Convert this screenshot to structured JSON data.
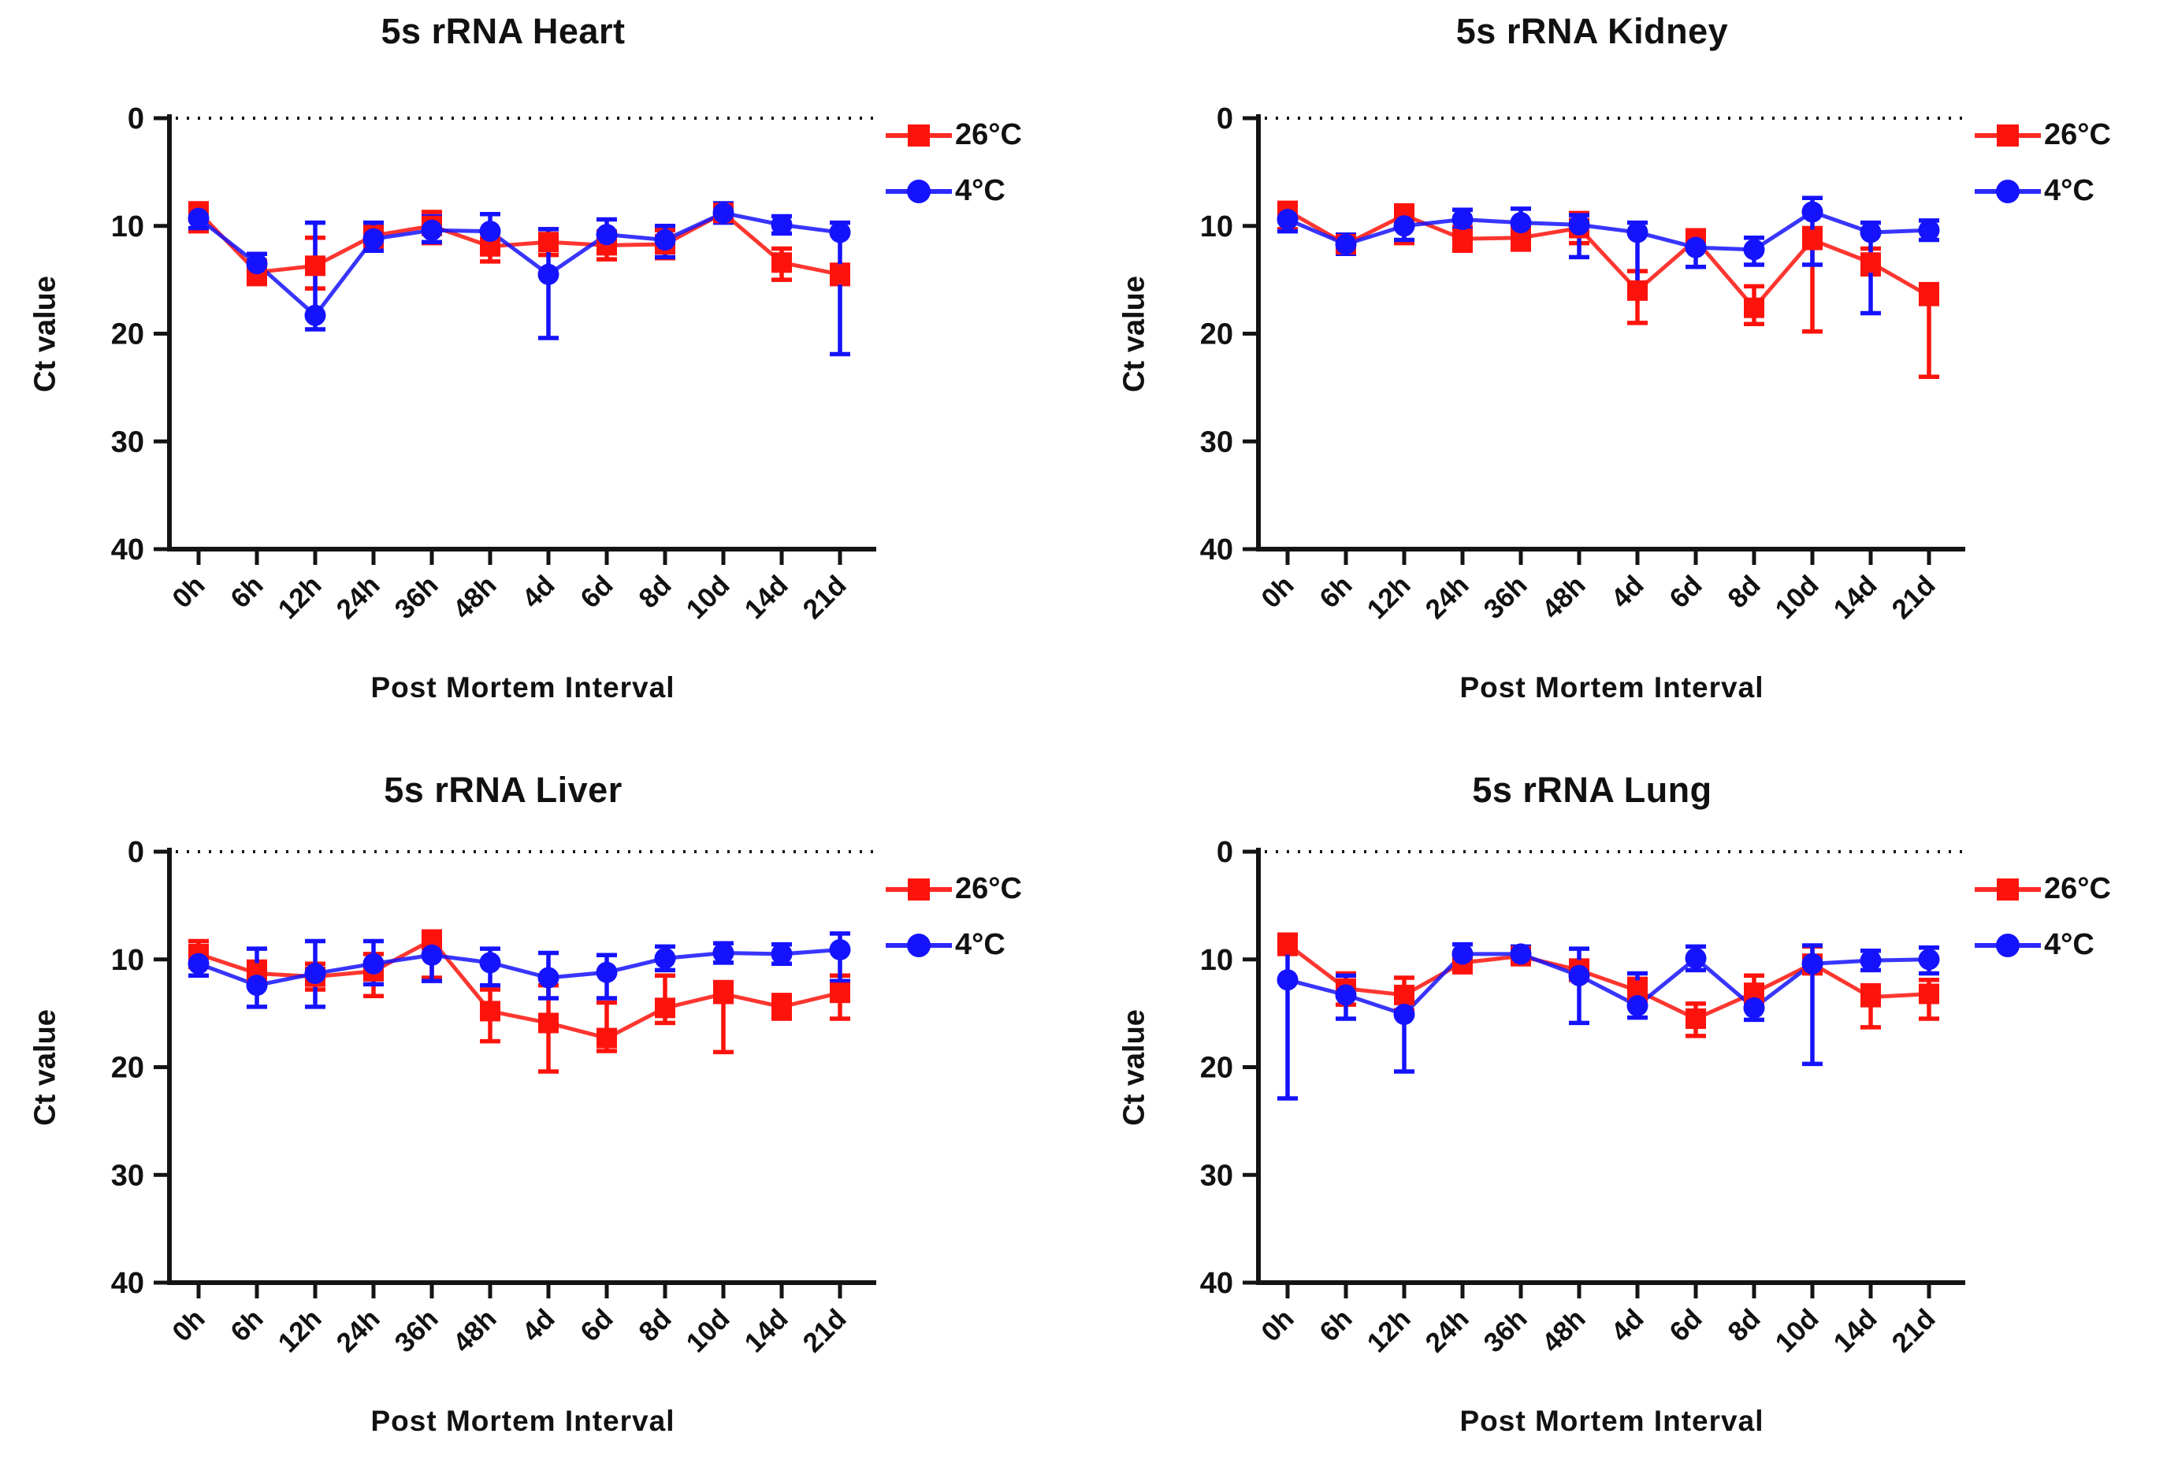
{
  "figure": {
    "background": "#ffffff"
  },
  "colors": {
    "red": "#fe130c",
    "blue": "#1512fd",
    "axis": "#141414",
    "text": "#111111"
  },
  "chart_data": [
    {
      "type": "line",
      "title": "5s rRNA Heart",
      "xlabel": "Post Mortem Interval",
      "ylabel": "Ct value",
      "categories": [
        "0h",
        "6h",
        "12h",
        "24h",
        "36h",
        "48h",
        "4d",
        "6d",
        "8d",
        "10d",
        "14d",
        "21d"
      ],
      "yticks": [
        0,
        10,
        20,
        30,
        40
      ],
      "ylim": [
        0,
        40
      ],
      "y_axis_inverted": true,
      "zero_line": "dotted",
      "grid": "off",
      "legend_position": "right-top",
      "series": [
        {
          "id": "26c",
          "name": "26°C",
          "color": "#fe130c",
          "marker": "square",
          "values": [
            8.7,
            14.3,
            13.7,
            10.9,
            10.0,
            11.9,
            11.5,
            11.8,
            11.7,
            8.8,
            13.4,
            14.5
          ],
          "err_up": [
            0.8,
            1.1,
            2.6,
            1.1,
            1.3,
            1.4,
            1.2,
            1.3,
            1.3,
            0.8,
            1.3,
            0.9
          ],
          "err_dn": [
            1.8,
            1.1,
            2.1,
            1.1,
            1.6,
            1.4,
            1.2,
            1.3,
            1.3,
            0.8,
            1.6,
            0.9
          ]
        },
        {
          "id": "4c",
          "name": "4°C",
          "color": "#1512fd",
          "marker": "circle",
          "values": [
            9.3,
            13.5,
            18.3,
            11.2,
            10.4,
            10.5,
            14.5,
            10.8,
            11.3,
            8.8,
            9.9,
            10.6
          ],
          "err_up": [
            1.2,
            0.9,
            8.6,
            1.5,
            1.3,
            1.6,
            4.2,
            1.4,
            1.3,
            0.9,
            0.8,
            0.9
          ],
          "err_dn": [
            0.9,
            0.9,
            1.3,
            1.1,
            1.1,
            0.9,
            5.9,
            1.1,
            1.6,
            0.9,
            0.8,
            11.3
          ]
        }
      ]
    },
    {
      "type": "line",
      "title": "5s rRNA Kidney",
      "xlabel": "Post Mortem Interval",
      "ylabel": "Ct value",
      "categories": [
        "0h",
        "6h",
        "12h",
        "24h",
        "36h",
        "48h",
        "4d",
        "6d",
        "8d",
        "10d",
        "14d",
        "21d"
      ],
      "yticks": [
        0,
        10,
        20,
        30,
        40
      ],
      "ylim": [
        0,
        40
      ],
      "y_axis_inverted": true,
      "zero_line": "dotted",
      "grid": "off",
      "legend_position": "right-top",
      "series": [
        {
          "id": "26c",
          "name": "26°C",
          "color": "#fe130c",
          "marker": "square",
          "values": [
            8.6,
            11.7,
            9.0,
            11.2,
            11.1,
            10.2,
            16.0,
            11.3,
            17.6,
            11.3,
            13.4,
            16.5
          ],
          "err_up": [
            0.7,
            0.9,
            0.9,
            1.1,
            1.1,
            1.4,
            1.8,
            0.9,
            2.0,
            1.1,
            1.3,
            1.1
          ],
          "err_dn": [
            1.7,
            0.9,
            2.6,
            1.1,
            1.1,
            1.4,
            3.0,
            0.9,
            1.5,
            8.5,
            1.1,
            7.5
          ]
        },
        {
          "id": "4c",
          "name": "4°C",
          "color": "#1512fd",
          "marker": "circle",
          "values": [
            9.4,
            11.7,
            10.0,
            9.4,
            9.7,
            9.9,
            10.6,
            12.0,
            12.2,
            8.7,
            10.6,
            10.4
          ],
          "err_up": [
            1.1,
            0.9,
            1.3,
            0.9,
            1.3,
            0.9,
            0.9,
            0.9,
            1.1,
            1.3,
            0.9,
            0.9
          ],
          "err_dn": [
            1.1,
            0.9,
            1.3,
            0.9,
            0.9,
            3.0,
            6.1,
            1.8,
            1.4,
            4.9,
            7.5,
            0.9
          ]
        }
      ]
    },
    {
      "type": "line",
      "title": "5s rRNA Liver",
      "xlabel": "Post Mortem Interval",
      "ylabel": "Ct value",
      "categories": [
        "0h",
        "6h",
        "12h",
        "24h",
        "36h",
        "48h",
        "4d",
        "6d",
        "8d",
        "10d",
        "14d",
        "21d"
      ],
      "yticks": [
        0,
        10,
        20,
        30,
        40
      ],
      "ylim": [
        0,
        40
      ],
      "y_axis_inverted": true,
      "zero_line": "dotted",
      "grid": "off",
      "legend_position": "right-top",
      "series": [
        {
          "id": "26c",
          "name": "26°C",
          "color": "#fe130c",
          "marker": "square",
          "values": [
            9.5,
            11.3,
            11.6,
            11.1,
            8.2,
            14.8,
            15.9,
            17.3,
            14.5,
            13.2,
            14.4,
            13.1
          ],
          "err_up": [
            1.2,
            1.1,
            1.2,
            1.6,
            0.8,
            2.0,
            3.5,
            3.3,
            3.0,
            1.1,
            1.1,
            1.6
          ],
          "err_dn": [
            1.2,
            1.1,
            1.2,
            2.3,
            3.5,
            2.8,
            4.5,
            1.2,
            1.4,
            5.4,
            1.1,
            2.4
          ]
        },
        {
          "id": "4c",
          "name": "4°C",
          "color": "#1512fd",
          "marker": "circle",
          "values": [
            10.4,
            12.4,
            11.3,
            10.4,
            9.6,
            10.3,
            11.7,
            11.2,
            9.9,
            9.4,
            9.5,
            9.1
          ],
          "err_up": [
            1.1,
            3.4,
            3.0,
            2.1,
            1.3,
            1.3,
            2.3,
            1.6,
            1.1,
            0.9,
            0.9,
            1.5
          ],
          "err_dn": [
            1.1,
            2.0,
            3.1,
            1.9,
            2.4,
            2.1,
            1.9,
            2.4,
            1.1,
            0.9,
            0.9,
            2.9
          ]
        }
      ]
    },
    {
      "type": "line",
      "title": "5s rRNA Lung",
      "xlabel": "Post Mortem Interval",
      "ylabel": "Ct value",
      "categories": [
        "0h",
        "6h",
        "12h",
        "24h",
        "36h",
        "48h",
        "4d",
        "6d",
        "8d",
        "10d",
        "14d",
        "21d"
      ],
      "yticks": [
        0,
        10,
        20,
        30,
        40
      ],
      "ylim": [
        0,
        40
      ],
      "y_axis_inverted": true,
      "zero_line": "dotted",
      "grid": "off",
      "legend_position": "right-top",
      "series": [
        {
          "id": "26c",
          "name": "26°C",
          "color": "#fe130c",
          "marker": "square",
          "values": [
            8.6,
            12.7,
            13.3,
            10.3,
            9.7,
            11.0,
            12.9,
            15.5,
            13.1,
            10.4,
            13.5,
            13.2
          ],
          "err_up": [
            0.9,
            1.4,
            1.6,
            0.9,
            0.7,
            0.9,
            1.1,
            1.4,
            1.6,
            1.6,
            1.1,
            1.3
          ],
          "err_dn": [
            0.9,
            1.5,
            1.4,
            0.9,
            0.7,
            0.9,
            1.1,
            1.6,
            0.9,
            0.9,
            2.8,
            2.3
          ]
        },
        {
          "id": "4c",
          "name": "4°C",
          "color": "#1512fd",
          "marker": "circle",
          "values": [
            11.9,
            13.3,
            15.1,
            9.5,
            9.5,
            11.5,
            14.3,
            9.9,
            14.5,
            10.4,
            10.1,
            10.0
          ],
          "err_up": [
            3.2,
            1.8,
            1.9,
            0.9,
            0.7,
            2.5,
            3.0,
            1.1,
            1.1,
            1.7,
            0.9,
            1.1
          ],
          "err_dn": [
            11.0,
            2.2,
            5.3,
            0.9,
            0.7,
            4.4,
            1.1,
            1.1,
            1.1,
            9.3,
            0.9,
            1.3
          ]
        }
      ]
    }
  ]
}
